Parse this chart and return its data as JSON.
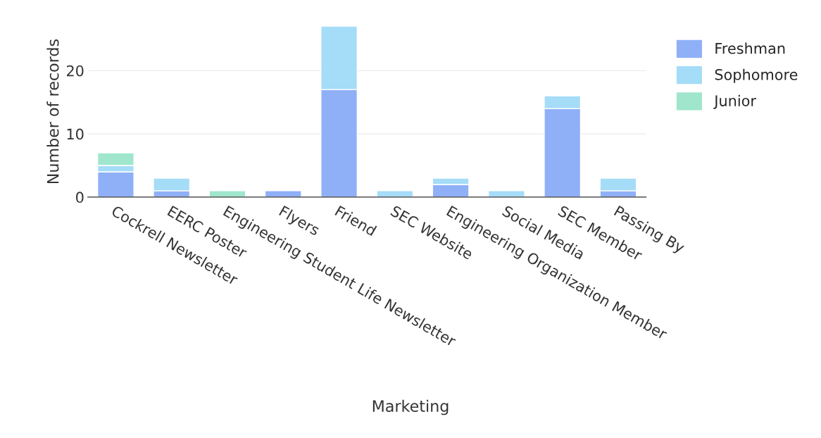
{
  "chart_data": {
    "type": "bar",
    "stacked": true,
    "xlabel": "Marketing",
    "ylabel": "Number of records",
    "categories": [
      "Cockrell Newsletter",
      "EERC Poster",
      "Engineering Student Life Newsletter",
      "Flyers",
      "Friend",
      "SEC Website",
      "Engineering Organization Member",
      "Social Media",
      "SEC Member",
      "Passing By"
    ],
    "series": [
      {
        "name": "Freshman",
        "color": "#8fb0f7",
        "values": [
          4,
          1,
          null,
          1,
          17,
          null,
          2,
          null,
          14,
          1
        ]
      },
      {
        "name": "Sophomore",
        "color": "#a5dcf7",
        "values": [
          1,
          2,
          null,
          null,
          10,
          1,
          1,
          1,
          2,
          2
        ]
      },
      {
        "name": "Junior",
        "color": "#9fe6cc",
        "values": [
          2,
          null,
          1,
          null,
          null,
          null,
          null,
          null,
          null,
          null
        ]
      }
    ],
    "ylim": [
      0,
      27
    ],
    "yticks": [
      0,
      10,
      20
    ],
    "grid": "y",
    "legend": "top right"
  }
}
